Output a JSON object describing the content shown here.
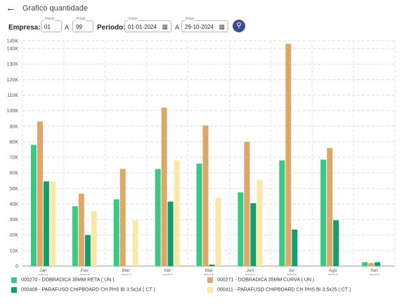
{
  "header": {
    "back_icon": "arrow-left-icon",
    "title": "Grafico quantidade"
  },
  "filters": {
    "empresa_label": "Empresa:",
    "inicio_label": "Inicio",
    "inicio_value": "01",
    "a_label": "A",
    "final_label": "Final",
    "final_value": "99",
    "periodo_label": "Periodo:",
    "date_inicio_label": "Inicio",
    "date_inicio_value": "01-01-2024",
    "a2_label": "A",
    "date_final_label": "Final",
    "date_final_value": "29-10-2024",
    "calendar_icon": "calendar-icon",
    "search_icon": "search-icon"
  },
  "chart_data": {
    "type": "bar",
    "categories": [
      "Jan\n2024",
      "Fev\n2024",
      "Mar\n2024",
      "Abr\n2024",
      "Mai\n2024",
      "Jun\n2024",
      "Jul\n2024",
      "Ago\n2024",
      "Set\n2024"
    ],
    "category_month": [
      "Jan",
      "Fev",
      "Mar",
      "Abr",
      "Mai",
      "Jun",
      "Jul",
      "Ago",
      "Set"
    ],
    "category_year": [
      "2024",
      "2024",
      "2024",
      "2024",
      "2024",
      "2024",
      "2024",
      "2024",
      "2024"
    ],
    "ylim": [
      0,
      145000
    ],
    "yticks": [
      0,
      10000,
      20000,
      30000,
      40000,
      50000,
      60000,
      70000,
      80000,
      90000,
      100000,
      110000,
      120000,
      130000,
      140000,
      145000
    ],
    "ytick_labels": [
      "0",
      "10K",
      "20K",
      "30K",
      "40K",
      "50K",
      "60K",
      "70K",
      "80K",
      "90K",
      "100K",
      "110K",
      "120K",
      "130K",
      "140K",
      "145K"
    ],
    "grid": true,
    "legend_position": "bottom",
    "series": [
      {
        "name": "000270 - DOBRADICA 35MM RETA ( UN )",
        "color": "#3cc884",
        "values": [
          78000,
          38500,
          43000,
          62500,
          66000,
          47500,
          68000,
          68500,
          2500
        ]
      },
      {
        "name": "000271 - DOBRADICA 35MM CURVA ( UN )",
        "color": "#dca868",
        "values": [
          93000,
          46500,
          62500,
          102000,
          90500,
          80000,
          143000,
          76000,
          2000
        ]
      },
      {
        "name": "000408 - PARAFUSO CHIPBOARD CH PHS BI 3.5x14 ( CT )",
        "color": "#149f68",
        "values": [
          54500,
          20000,
          0,
          41500,
          1000,
          40500,
          23500,
          29500,
          2500
        ]
      },
      {
        "name": "000411 - PARAFUSO CHIPBOARD CH PHS BI 3.5x25 ( CT )",
        "color": "#fbe8a8",
        "values": [
          54500,
          35500,
          29500,
          68000,
          44000,
          55500,
          0,
          0,
          0
        ]
      }
    ]
  }
}
